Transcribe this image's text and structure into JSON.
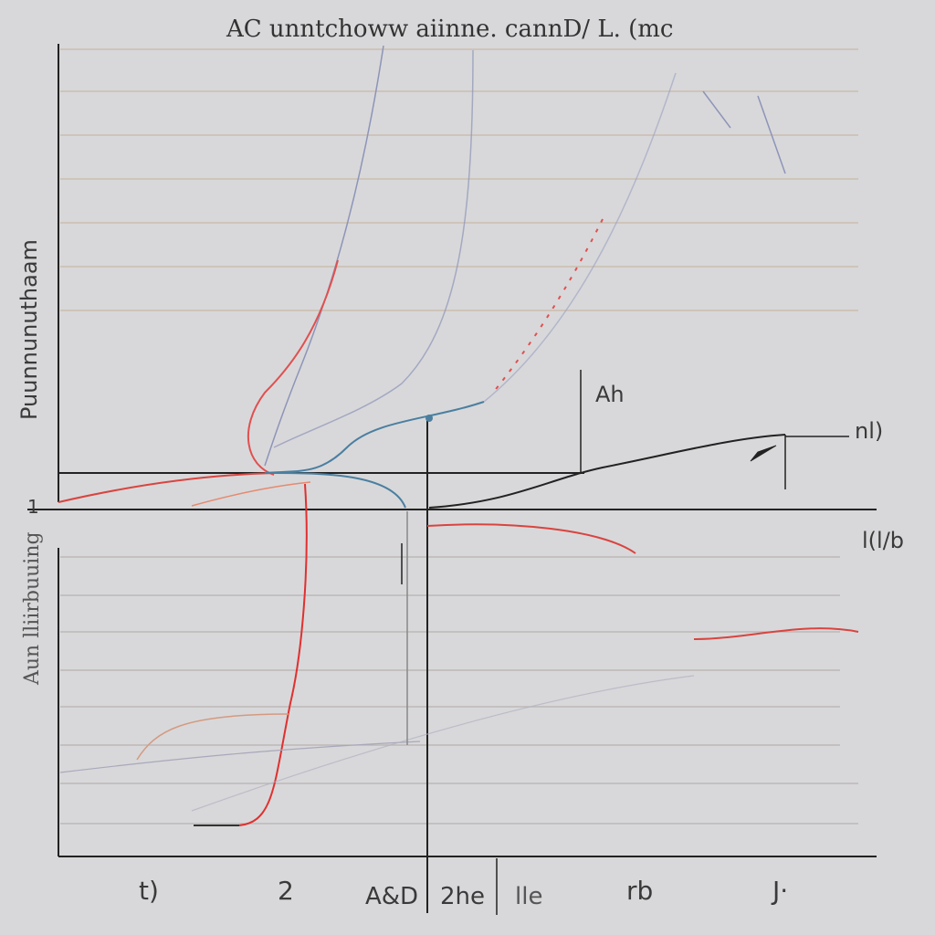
{
  "title": "AC unntchoww aiinne. cannD/ L. (mc",
  "axis_labels": {
    "upper_left": "Puunnunuthaam",
    "lower_left": "Aun lliirbuuing",
    "origin": "1",
    "right_upper": "nl)",
    "right_lower": "l(l/b"
  },
  "annotation": "Ah",
  "bottom_labels": [
    "t)",
    "2",
    "A&D",
    "2he",
    "lle",
    "rb",
    "J·"
  ]
}
